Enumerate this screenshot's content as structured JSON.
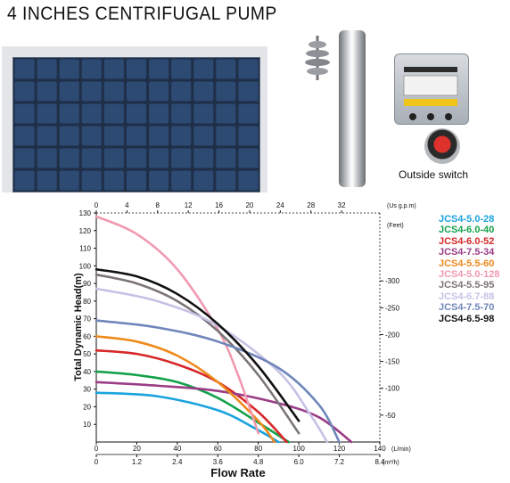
{
  "page": {
    "title": "4 INCHES CENTRIFUGAL PUMP",
    "switch_label": "Outside switch"
  },
  "chart_data": {
    "type": "line",
    "title": "",
    "ylabel": "Total Dynamic Head(m)",
    "xlabel": "Flow Rate",
    "xlim": [
      0,
      140
    ],
    "ylim": [
      0,
      130
    ],
    "grid": false,
    "legend_position": "right",
    "axes": {
      "left_ticks": [
        "130",
        "120",
        "110",
        "100",
        "90",
        "80",
        "70",
        "60",
        "50",
        "40",
        "30",
        "20",
        "10"
      ],
      "top_ticks": [
        "0",
        "4",
        "8",
        "12",
        "16",
        "20",
        "24",
        "28",
        "32"
      ],
      "top_unit": "(Us g.p.m)",
      "right_unit": "(Feet)",
      "right_ticks": [
        "300",
        "250",
        "200",
        "150",
        "100",
        "50"
      ],
      "bottom1_ticks": [
        "0",
        "20",
        "40",
        "60",
        "80",
        "100",
        "120",
        "140"
      ],
      "bottom1_unit": "(L/min)",
      "bottom2_ticks": [
        "0",
        "1.2",
        "2.4",
        "3.6",
        "4.8",
        "6.0",
        "7.2",
        "8.4"
      ],
      "bottom2_unit": "(m³/h)"
    },
    "series": [
      {
        "name": "JCS4-5.0-28",
        "color": "#1aa3de",
        "x": [
          0,
          30,
          60,
          78,
          90
        ],
        "y": [
          28,
          26,
          18,
          8,
          0
        ]
      },
      {
        "name": "JCS4-6.0-40",
        "color": "#13a14b",
        "x": [
          0,
          20,
          40,
          60,
          80,
          95
        ],
        "y": [
          40,
          38,
          34,
          25,
          11,
          0
        ]
      },
      {
        "name": "JCS4-6.0-52",
        "color": "#d62828",
        "x": [
          0,
          20,
          40,
          60,
          80,
          94
        ],
        "y": [
          52,
          50,
          44,
          34,
          17,
          0
        ]
      },
      {
        "name": "JCS4-7.5-34",
        "color": "#9b3d86",
        "x": [
          0,
          30,
          60,
          90,
          110,
          126
        ],
        "y": [
          34,
          32,
          29,
          22,
          14,
          0
        ]
      },
      {
        "name": "JCS4-5.5-60",
        "color": "#ee8a1d",
        "x": [
          0,
          20,
          40,
          60,
          80,
          88
        ],
        "y": [
          60,
          57,
          49,
          34,
          12,
          0
        ]
      },
      {
        "name": "JCS4-5.0-128",
        "color": "#f19ab0",
        "x": [
          0,
          20,
          40,
          60,
          70,
          80
        ],
        "y": [
          128,
          118,
          98,
          64,
          38,
          5
        ]
      },
      {
        "name": "JCS4-5.5-95",
        "color": "#7b7478",
        "x": [
          0,
          20,
          40,
          60,
          80,
          100
        ],
        "y": [
          95,
          90,
          80,
          63,
          38,
          5
        ]
      },
      {
        "name": "JCS4-6.7-88",
        "color": "#c6c2e6",
        "x": [
          0,
          30,
          60,
          90,
          106,
          114
        ],
        "y": [
          87,
          80,
          66,
          40,
          15,
          0
        ]
      },
      {
        "name": "JCS4-7.5-70",
        "color": "#6f86ba",
        "x": [
          0,
          30,
          60,
          90,
          110,
          120
        ],
        "y": [
          69,
          65,
          57,
          42,
          21,
          0
        ]
      },
      {
        "name": "JCS4-6.5-98",
        "color": "#111111",
        "x": [
          0,
          20,
          40,
          60,
          80,
          100
        ],
        "y": [
          98,
          94,
          84,
          67,
          43,
          12
        ]
      }
    ]
  }
}
